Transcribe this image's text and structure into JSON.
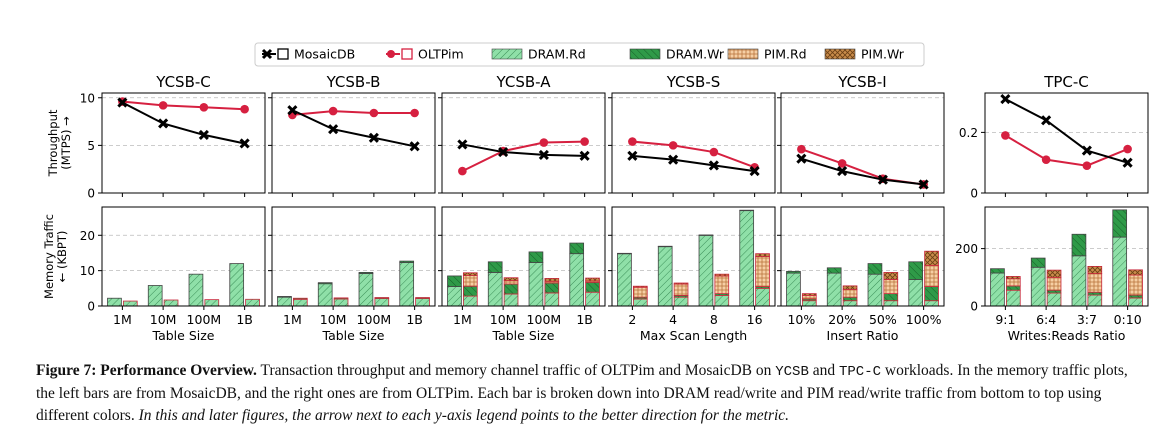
{
  "chart_data": {
    "type": "bar",
    "legend": {
      "position": "top-center",
      "entries": [
        {
          "name": "MosaicDB",
          "kind": "line",
          "color": "#000000"
        },
        {
          "name": "OLTPim",
          "kind": "line",
          "color": "#d62040"
        },
        {
          "name": "DRAM.Rd",
          "kind": "bar",
          "color": "#8fe0a8"
        },
        {
          "name": "DRAM.Wr",
          "kind": "bar",
          "color": "#2f9a48"
        },
        {
          "name": "PIM.Rd",
          "kind": "bar",
          "color": "#f6cfa4"
        },
        {
          "name": "PIM.Wr",
          "kind": "bar",
          "color": "#c98c4a"
        }
      ]
    },
    "panels": [
      {
        "title": "YCSB-C",
        "xlabel": "Table Size",
        "categories": [
          "1M",
          "10M",
          "100M",
          "1B"
        ],
        "throughput": {
          "ylabel": "Throughput\n(MTPS) →",
          "ylim": [
            0,
            10.5
          ],
          "yticks": [
            0,
            5,
            10
          ],
          "MosaicDB": [
            9.5,
            7.3,
            6.1,
            5.2
          ],
          "OLTPim": [
            9.6,
            9.2,
            9.0,
            8.8
          ]
        },
        "traffic": {
          "ylabel": "Memory Traffic\n← (KBPT)",
          "ylim": [
            0,
            28
          ],
          "yticks": [
            0,
            10,
            20
          ],
          "MosaicDB": {
            "DRAM.Rd": [
              2.2,
              5.8,
              9.0,
              12.0
            ],
            "DRAM.Wr": [
              0,
              0,
              0,
              0
            ],
            "PIM.Rd": [
              0,
              0,
              0,
              0
            ],
            "PIM.Wr": [
              0,
              0,
              0,
              0
            ]
          },
          "OLTPim": {
            "DRAM.Rd": [
              1.4,
              1.7,
              1.8,
              1.9
            ],
            "DRAM.Wr": [
              0,
              0,
              0,
              0
            ],
            "PIM.Rd": [
              0,
              0,
              0,
              0
            ],
            "PIM.Wr": [
              0,
              0,
              0,
              0
            ]
          }
        }
      },
      {
        "title": "YCSB-B",
        "xlabel": "Table Size",
        "categories": [
          "1M",
          "10M",
          "100M",
          "1B"
        ],
        "throughput": {
          "ylim": [
            0,
            10.5
          ],
          "yticks": [
            0,
            5,
            10
          ],
          "MosaicDB": [
            8.7,
            6.7,
            5.8,
            4.9
          ],
          "OLTPim": [
            8.2,
            8.6,
            8.4,
            8.4
          ]
        },
        "traffic": {
          "ylim": [
            0,
            28
          ],
          "yticks": [
            0,
            10,
            20
          ],
          "MosaicDB": {
            "DRAM.Rd": [
              2.5,
              6.3,
              9.2,
              12.3
            ],
            "DRAM.Wr": [
              0.2,
              0.3,
              0.3,
              0.4
            ],
            "PIM.Rd": [
              0,
              0,
              0,
              0
            ],
            "PIM.Wr": [
              0,
              0,
              0,
              0
            ]
          },
          "OLTPim": {
            "DRAM.Rd": [
              1.9,
              2.0,
              2.1,
              2.1
            ],
            "DRAM.Wr": [
              0.3,
              0.3,
              0.3,
              0.3
            ],
            "PIM.Rd": [
              0,
              0,
              0,
              0
            ],
            "PIM.Wr": [
              0,
              0,
              0,
              0
            ]
          }
        }
      },
      {
        "title": "YCSB-A",
        "xlabel": "Table Size",
        "categories": [
          "1M",
          "10M",
          "100M",
          "1B"
        ],
        "throughput": {
          "ylim": [
            0,
            10.5
          ],
          "yticks": [
            0,
            5,
            10
          ],
          "MosaicDB": [
            5.1,
            4.3,
            4.0,
            3.9
          ],
          "OLTPim": [
            2.3,
            4.4,
            5.3,
            5.4
          ]
        },
        "traffic": {
          "ylim": [
            0,
            28
          ],
          "yticks": [
            0,
            10,
            20
          ],
          "MosaicDB": {
            "DRAM.Rd": [
              5.5,
              9.5,
              12.3,
              14.8
            ],
            "DRAM.Wr": [
              3.0,
              3.0,
              3.0,
              3.0
            ],
            "PIM.Rd": [
              0,
              0,
              0,
              0
            ],
            "PIM.Wr": [
              0,
              0,
              0,
              0
            ]
          },
          "OLTPim": {
            "DRAM.Rd": [
              2.8,
              3.4,
              3.7,
              3.9
            ],
            "DRAM.Wr": [
              2.8,
              2.8,
              2.8,
              2.8
            ],
            "PIM.Rd": [
              3.0,
              1.0,
              0.5,
              0.4
            ],
            "PIM.Wr": [
              0.8,
              0.8,
              0.8,
              0.8
            ]
          }
        }
      },
      {
        "title": "YCSB-S",
        "xlabel": "Max Scan Length",
        "categories": [
          "2",
          "4",
          "8",
          "16"
        ],
        "throughput": {
          "ylim": [
            0,
            10.5
          ],
          "yticks": [
            0,
            5,
            10
          ],
          "MosaicDB": [
            3.9,
            3.5,
            2.9,
            2.3
          ],
          "OLTPim": [
            5.4,
            5.0,
            4.3,
            2.7
          ]
        },
        "traffic": {
          "ylim": [
            0,
            28
          ],
          "yticks": [
            0,
            10,
            20
          ],
          "MosaicDB": {
            "DRAM.Rd": [
              14.8,
              16.8,
              20.0,
              27.0
            ],
            "DRAM.Wr": [
              0.1,
              0.1,
              0.1,
              0.1
            ],
            "PIM.Rd": [
              0,
              0,
              0,
              0
            ],
            "PIM.Wr": [
              0,
              0,
              0,
              0
            ]
          },
          "OLTPim": {
            "DRAM.Rd": [
              2.0,
              2.5,
              3.0,
              5.0
            ],
            "DRAM.Wr": [
              0.5,
              0.5,
              0.5,
              0.5
            ],
            "PIM.Rd": [
              2.8,
              3.2,
              5.0,
              8.5
            ],
            "PIM.Wr": [
              0.3,
              0.3,
              0.5,
              0.8
            ]
          }
        }
      },
      {
        "title": "YCSB-I",
        "xlabel": "Insert Ratio",
        "categories": [
          "10%",
          "20%",
          "50%",
          "100%"
        ],
        "throughput": {
          "ylim": [
            0,
            10.5
          ],
          "yticks": [
            0,
            5,
            10
          ],
          "MosaicDB": [
            3.6,
            2.3,
            1.4,
            0.9
          ],
          "OLTPim": [
            4.6,
            3.1,
            1.5,
            0.9
          ]
        },
        "traffic": {
          "ylim": [
            0,
            28
          ],
          "yticks": [
            0,
            10,
            20
          ],
          "MosaicDB": {
            "DRAM.Rd": [
              9.3,
              9.3,
              9.0,
              7.5
            ],
            "DRAM.Wr": [
              0.5,
              1.5,
              3.0,
              5.0
            ],
            "PIM.Rd": [
              0,
              0,
              0,
              0
            ],
            "PIM.Wr": [
              0,
              0,
              0,
              0
            ]
          },
          "OLTPim": {
            "DRAM.Rd": [
              1.5,
              1.5,
              1.5,
              1.5
            ],
            "DRAM.Wr": [
              0.5,
              1.0,
              2.0,
              4.0
            ],
            "PIM.Rd": [
              1.0,
              2.2,
              4.0,
              6.0
            ],
            "PIM.Wr": [
              0.5,
              1.0,
              2.0,
              4.0
            ]
          }
        }
      },
      {
        "title": "TPC-C",
        "xlabel": "Writes:Reads Ratio",
        "categories": [
          "9:1",
          "6:4",
          "3:7",
          "0:10"
        ],
        "throughput": {
          "ylim": [
            0,
            0.33
          ],
          "yticks": [
            0,
            0.2
          ],
          "MosaicDB": [
            0.31,
            0.24,
            0.14,
            0.1
          ],
          "OLTPim": [
            0.19,
            0.11,
            0.09,
            0.145
          ]
        },
        "traffic": {
          "ylim": [
            0,
            345
          ],
          "yticks": [
            0,
            200
          ],
          "MosaicDB": {
            "DRAM.Rd": [
              115,
              135,
              175,
              240
            ],
            "DRAM.Wr": [
              15,
              32,
              75,
              95
            ],
            "PIM.Rd": [
              0,
              0,
              0,
              0
            ],
            "PIM.Wr": [
              0,
              0,
              0,
              0
            ]
          },
          "OLTPim": {
            "DRAM.Rd": [
              55,
              45,
              38,
              28
            ],
            "DRAM.Wr": [
              15,
              10,
              10,
              10
            ],
            "PIM.Rd": [
              25,
              45,
              65,
              70
            ],
            "PIM.Wr": [
              8,
              25,
              25,
              18
            ]
          }
        }
      }
    ]
  },
  "caption": {
    "label": "Figure 7: Performance Overview.",
    "part1": " Transaction throughput and memory channel traffic of OLTPim and MosaicDB on ",
    "ycsb": "YCSB",
    "and": " and ",
    "tpcc": "TPC-C",
    "part2": " workloads. In the memory traffic plots, the left bars are from MosaicDB, and the right ones are from OLTPim. Each bar is broken down into DRAM read/write and PIM read/write traffic from bottom to top using different colors. ",
    "italic": "In this and later figures, the arrow next to each y-axis legend points to the better direction for the metric."
  }
}
